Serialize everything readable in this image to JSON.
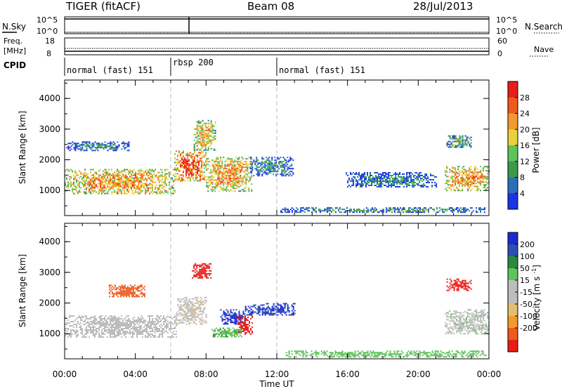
{
  "header": {
    "radar": "TIGER (fitACF)",
    "beam": "Beam 08",
    "date": "28/Jul/2013"
  },
  "colors": {
    "power": [
      "#1a33e6",
      "#2a70b8",
      "#3c9a4a",
      "#5fc35a",
      "#e8d23a",
      "#f29a2e",
      "#ee5a1e",
      "#e81e18"
    ],
    "velocity": [
      "#e81e18",
      "#ee5a1e",
      "#f29a2e",
      "#e0c070",
      "#bdbdbd",
      "#bdbdbd",
      "#5fc35a",
      "#2a8a3a",
      "#2a50b4",
      "#1a2ad0"
    ],
    "grey_scatter": "#b8b8b8"
  },
  "status_panels": {
    "nsky": {
      "label": "N.Sky",
      "top_tick": "10^5",
      "bottom_tick": "10^0"
    },
    "nsearch": {
      "label": "N.Search",
      "top_tick": "10^5",
      "bottom_tick": "10^0"
    },
    "freq": {
      "label_line1": "Freq.",
      "label_line2": "[MHz]",
      "top_tick": "18",
      "bottom_tick": "8"
    },
    "nave": {
      "label": "Nave",
      "top_tick": "60",
      "bottom_tick": "0"
    },
    "cpid": {
      "label": "CPID",
      "segments": [
        {
          "label": "normal (fast) 151",
          "start_hour": 0
        },
        {
          "label": "rbsp 200",
          "start_hour": 6
        },
        {
          "label": "normal (fast) 151",
          "start_hour": 12
        }
      ]
    }
  },
  "chart_data": [
    {
      "type": "heatmap",
      "quantity": "Power",
      "ylabel": "Slant Range [km]",
      "xlabel": "Time UT",
      "x_range_hours": [
        0,
        24
      ],
      "ylim": [
        180,
        4600
      ],
      "y_ticks": [
        "1000",
        "2000",
        "3000",
        "4000"
      ],
      "x_ticks": [
        "00:00",
        "04:00",
        "08:00",
        "12:00",
        "16:00",
        "20:00",
        "00:00"
      ],
      "colorbar": {
        "label": "Power [dB]",
        "ticks": [
          "4",
          "8",
          "12",
          "16",
          "20",
          "24",
          "28"
        ],
        "range": [
          0,
          32
        ]
      },
      "mode_change_hours": [
        6,
        12
      ],
      "echo_regions": [
        {
          "t": [
            0.0,
            6.2
          ],
          "r": [
            900,
            1700
          ],
          "dB": 22
        },
        {
          "t": [
            6.2,
            8.0
          ],
          "r": [
            1300,
            2300
          ],
          "dB": 26
        },
        {
          "t": [
            7.3,
            8.5
          ],
          "r": [
            2300,
            3300
          ],
          "dB": 20
        },
        {
          "t": [
            8.0,
            10.6
          ],
          "r": [
            1000,
            2100
          ],
          "dB": 22
        },
        {
          "t": [
            10.5,
            12.9
          ],
          "r": [
            1500,
            2100
          ],
          "dB": 9
        },
        {
          "t": [
            12.2,
            23.8
          ],
          "r": [
            300,
            450
          ],
          "dB": 10
        },
        {
          "t": [
            15.9,
            21.0
          ],
          "r": [
            1100,
            1600
          ],
          "dB": 8
        },
        {
          "t": [
            21.5,
            24.0
          ],
          "r": [
            1000,
            1800
          ],
          "dB": 22
        },
        {
          "t": [
            21.6,
            23.0
          ],
          "r": [
            2400,
            2800
          ],
          "dB": 12
        },
        {
          "t": [
            0.1,
            3.6
          ],
          "r": [
            2300,
            2600
          ],
          "dB": 8
        }
      ]
    },
    {
      "type": "heatmap",
      "quantity": "Velocity",
      "ylabel": "Slant Range [km]",
      "xlabel": "Time UT",
      "x_range_hours": [
        0,
        24
      ],
      "ylim": [
        180,
        4600
      ],
      "y_ticks": [
        "1000",
        "2000",
        "3000",
        "4000"
      ],
      "x_ticks": [
        "00:00",
        "04:00",
        "08:00",
        "12:00",
        "16:00",
        "20:00",
        "00:00"
      ],
      "colorbar": {
        "label": "Velocity [m s^-1]",
        "ticks": [
          "200",
          "100",
          "50",
          "15",
          "-15",
          "-50",
          "-100",
          "-200"
        ],
        "range": [
          -250,
          250
        ]
      },
      "mode_change_hours": [
        6,
        12
      ],
      "echo_regions": [
        {
          "t": [
            0.0,
            6.3
          ],
          "r": [
            900,
            1600
          ],
          "v": 0
        },
        {
          "t": [
            6.3,
            8.0
          ],
          "r": [
            1300,
            2200
          ],
          "v": -5
        },
        {
          "t": [
            7.2,
            8.3
          ],
          "r": [
            2800,
            3300
          ],
          "v": -220
        },
        {
          "t": [
            8.8,
            10.2
          ],
          "r": [
            1300,
            1800
          ],
          "v": 210
        },
        {
          "t": [
            9.7,
            10.6
          ],
          "r": [
            1000,
            1600
          ],
          "v": -220
        },
        {
          "t": [
            10.2,
            13.0
          ],
          "r": [
            1600,
            2000
          ],
          "v": 200
        },
        {
          "t": [
            8.3,
            10.0
          ],
          "r": [
            900,
            1200
          ],
          "v": 40
        },
        {
          "t": [
            12.5,
            23.8
          ],
          "r": [
            250,
            450
          ],
          "v": 30
        },
        {
          "t": [
            21.5,
            24.0
          ],
          "r": [
            1000,
            1800
          ],
          "v": 5
        },
        {
          "t": [
            21.6,
            23.0
          ],
          "r": [
            2400,
            2800
          ],
          "v": -220
        },
        {
          "t": [
            2.5,
            4.5
          ],
          "r": [
            2200,
            2600
          ],
          "v": -120
        }
      ]
    }
  ]
}
